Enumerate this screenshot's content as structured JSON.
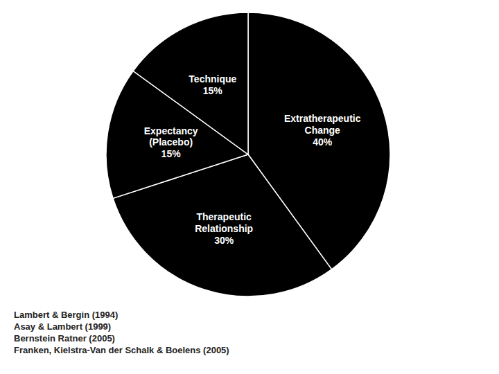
{
  "chart_data": {
    "type": "pie",
    "categories": [
      "Extratherapeutic\nChange\n40%",
      "Therapeutic\nRelationship\n30%",
      "Expectancy\n(Placebo)\n15%",
      "Technique\n15%"
    ],
    "values": [
      40,
      30,
      15,
      15
    ],
    "colors": [
      "#000000",
      "#000000",
      "#000000",
      "#000000"
    ],
    "annotations": [
      "Lambert & Bergin (1994)",
      "Asay & Lambert (1999)",
      "Bernstein Ratner (2005)",
      "Franken, Kielstra-Van der Schalk & Boelens (2005)"
    ]
  }
}
